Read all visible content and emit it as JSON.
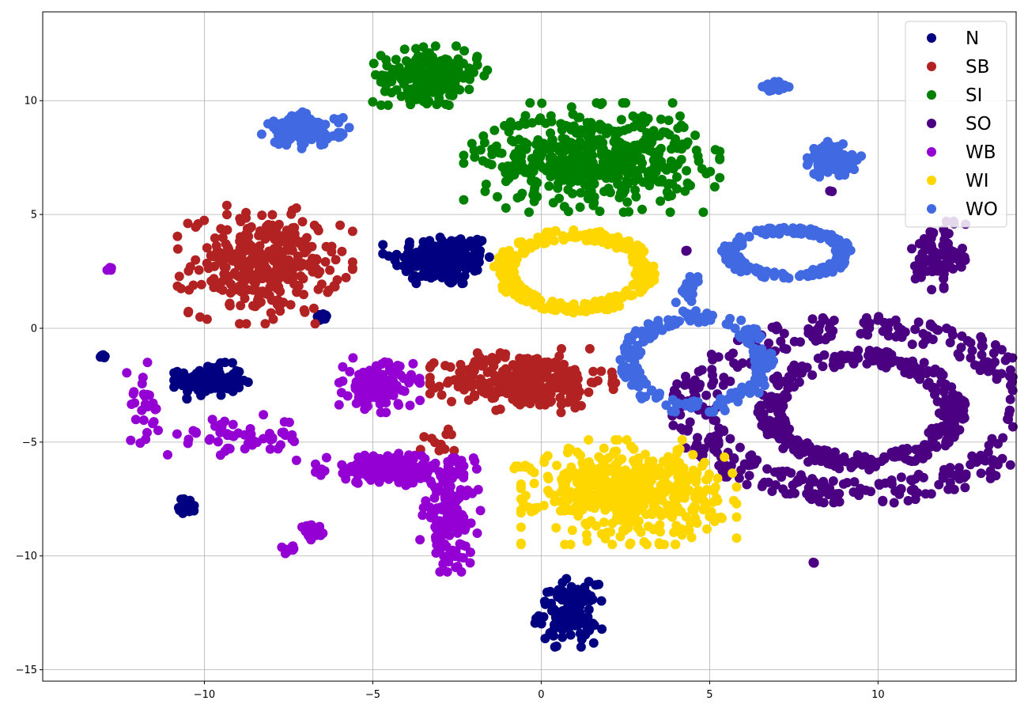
{
  "chart_data": {
    "type": "scatter",
    "title": "",
    "xlabel": "",
    "ylabel": "",
    "xlim": [
      -14.8,
      14.1
    ],
    "ylim": [
      -15.5,
      13.9
    ],
    "xticks": [
      -10,
      -5,
      0,
      5,
      10
    ],
    "yticks": [
      -15,
      -10,
      -5,
      0,
      5,
      10
    ],
    "xtick_labels": [
      "−10",
      "−5",
      "0",
      "5",
      "10"
    ],
    "ytick_labels": [
      "−15",
      "−10",
      "−5",
      "0",
      "5",
      "10"
    ],
    "grid": true,
    "legend_position": "top-right",
    "series": [
      {
        "name": "N",
        "color": "#000080",
        "clusters": [
          {
            "cx": -2.9,
            "cy": 3.0,
            "rx": 1.8,
            "ry": 1.4,
            "n": 170
          },
          {
            "cx": -9.8,
            "cy": -2.3,
            "rx": 1.1,
            "ry": 0.8,
            "n": 130
          },
          {
            "cx": -6.5,
            "cy": 0.5,
            "rx": 0.25,
            "ry": 0.15,
            "n": 15
          },
          {
            "cx": -13.0,
            "cy": -1.2,
            "rx": 0.15,
            "ry": 0.2,
            "n": 10
          },
          {
            "cx": -10.5,
            "cy": -7.8,
            "rx": 0.3,
            "ry": 0.4,
            "n": 20
          },
          {
            "cx": 0.8,
            "cy": -12.5,
            "rx": 1.0,
            "ry": 1.5,
            "n": 120
          }
        ]
      },
      {
        "name": "SB",
        "color": "#B22222",
        "clusters": [
          {
            "cx": -8.2,
            "cy": 2.8,
            "rx": 2.6,
            "ry": 2.6,
            "n": 320
          },
          {
            "cx": -0.5,
            "cy": -2.3,
            "rx": 2.8,
            "ry": 1.4,
            "n": 330
          },
          {
            "cx": -3.0,
            "cy": -5.0,
            "rx": 0.8,
            "ry": 0.8,
            "n": 12
          }
        ]
      },
      {
        "name": "SI",
        "color": "#008000",
        "clusters": [
          {
            "cx": -3.3,
            "cy": 11.1,
            "rx": 1.7,
            "ry": 1.3,
            "n": 220
          },
          {
            "cx": 1.5,
            "cy": 7.5,
            "rx": 3.8,
            "ry": 2.4,
            "n": 520
          }
        ]
      },
      {
        "name": "SO",
        "color": "#4B0082",
        "clusters": [
          {
            "cx": 9.5,
            "cy": -3.6,
            "rx": 2.7,
            "ry": 2.3,
            "n": 380,
            "ring": true
          },
          {
            "cx": 9.5,
            "cy": -3.6,
            "rx": 5.0,
            "ry": 3.6,
            "n": 420,
            "ring": true
          },
          {
            "cx": 11.8,
            "cy": 3.2,
            "rx": 0.8,
            "ry": 1.5,
            "n": 90
          },
          {
            "cx": 8.1,
            "cy": -10.3,
            "rx": 0.05,
            "ry": 0.05,
            "n": 4
          },
          {
            "cx": 4.3,
            "cy": 3.4,
            "rx": 0.05,
            "ry": 0.05,
            "n": 3
          },
          {
            "cx": 8.6,
            "cy": 6.0,
            "rx": 0.05,
            "ry": 0.05,
            "n": 2
          }
        ]
      },
      {
        "name": "WB",
        "color": "#9400D3",
        "clusters": [
          {
            "cx": -4.8,
            "cy": -2.5,
            "rx": 1.2,
            "ry": 1.2,
            "n": 150
          },
          {
            "cx": -4.5,
            "cy": -6.2,
            "rx": 2.2,
            "ry": 0.7,
            "n": 220
          },
          {
            "cx": -2.7,
            "cy": -8.2,
            "rx": 0.9,
            "ry": 2.5,
            "n": 150
          },
          {
            "cx": -9.0,
            "cy": -4.8,
            "rx": 2.5,
            "ry": 1.0,
            "n": 60
          },
          {
            "cx": -6.8,
            "cy": -9.0,
            "rx": 0.5,
            "ry": 0.4,
            "n": 25
          },
          {
            "cx": -11.8,
            "cy": -3.5,
            "rx": 0.7,
            "ry": 2.0,
            "n": 25
          },
          {
            "cx": -12.8,
            "cy": 2.6,
            "rx": 0.1,
            "ry": 0.1,
            "n": 6
          },
          {
            "cx": -7.5,
            "cy": -9.7,
            "rx": 0.2,
            "ry": 0.2,
            "n": 10
          }
        ]
      },
      {
        "name": "WI",
        "color": "#FFD700",
        "clusters": [
          {
            "cx": 1.0,
            "cy": 2.5,
            "rx": 2.1,
            "ry": 1.6,
            "n": 280,
            "ring": true
          },
          {
            "cx": 2.6,
            "cy": -7.2,
            "rx": 3.2,
            "ry": 2.3,
            "n": 500
          },
          {
            "cx": -0.6,
            "cy": -6.1,
            "rx": 0.2,
            "ry": 0.1,
            "n": 6
          }
        ]
      },
      {
        "name": "WO",
        "color": "#4169E1",
        "clusters": [
          {
            "cx": -7.0,
            "cy": 8.7,
            "rx": 1.3,
            "ry": 0.8,
            "n": 130
          },
          {
            "cx": 7.3,
            "cy": 3.3,
            "rx": 1.7,
            "ry": 1.0,
            "n": 180,
            "ring": true
          },
          {
            "cx": 4.6,
            "cy": -1.5,
            "rx": 2.0,
            "ry": 2.0,
            "n": 200,
            "ring": true
          },
          {
            "cx": 8.7,
            "cy": 7.4,
            "rx": 0.8,
            "ry": 0.8,
            "n": 130
          },
          {
            "cx": 7.0,
            "cy": 10.6,
            "rx": 0.5,
            "ry": 0.3,
            "n": 30
          },
          {
            "cx": 4.4,
            "cy": 1.8,
            "rx": 0.4,
            "ry": 0.8,
            "n": 20
          }
        ]
      }
    ]
  }
}
